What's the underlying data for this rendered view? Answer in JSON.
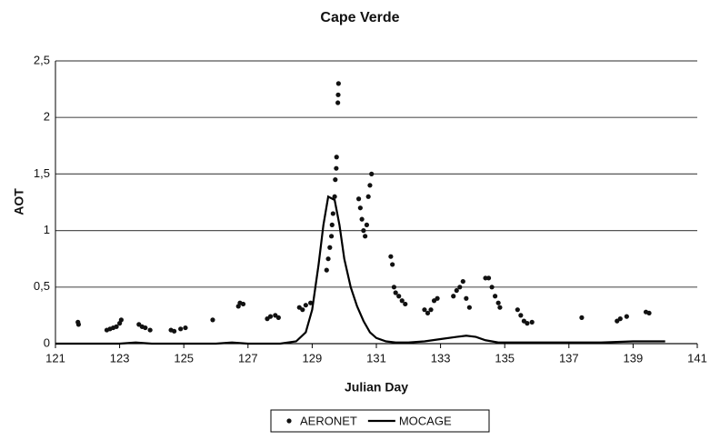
{
  "chart_data": {
    "type": "scatter",
    "title": "Cape Verde",
    "x_label": "Julian Day",
    "y_label": "AOT",
    "xlim": [
      121,
      141
    ],
    "xticks": [
      121,
      123,
      125,
      127,
      129,
      131,
      133,
      135,
      137,
      139,
      141
    ],
    "ylim": [
      0,
      2.5
    ],
    "yticks": [
      0,
      {
        "value": 0.5,
        "label": "0,5"
      },
      1,
      {
        "value": 1.5,
        "label": "1,5"
      },
      2,
      {
        "value": 2.5,
        "label": "2,5"
      }
    ],
    "grid": true,
    "legend": "bottom",
    "series": [
      {
        "name": "AERONET",
        "style": "points",
        "color": "#111111",
        "x": [
          121.7,
          121.72,
          122.6,
          122.7,
          122.8,
          122.9,
          123.0,
          123.05,
          123.6,
          123.7,
          123.8,
          123.95,
          124.6,
          124.7,
          124.9,
          125.05,
          125.9,
          126.7,
          126.75,
          126.85,
          127.6,
          127.7,
          127.85,
          127.95,
          128.6,
          128.7,
          128.8,
          128.95,
          129.45,
          129.5,
          129.55,
          129.6,
          129.62,
          129.65,
          129.7,
          129.72,
          129.75,
          129.76,
          129.8,
          129.81,
          129.82,
          130.45,
          130.5,
          130.55,
          130.6,
          130.65,
          130.7,
          130.75,
          130.8,
          130.85,
          131.45,
          131.5,
          131.55,
          131.6,
          131.7,
          131.8,
          131.9,
          132.5,
          132.6,
          132.7,
          132.8,
          132.9,
          133.4,
          133.5,
          133.6,
          133.7,
          133.8,
          133.9,
          134.4,
          134.5,
          134.6,
          134.7,
          134.8,
          134.85,
          135.4,
          135.5,
          135.6,
          135.7,
          135.85,
          137.4,
          138.5,
          138.6,
          138.8,
          139.4,
          139.5
        ],
        "values": [
          0.19,
          0.17,
          0.12,
          0.13,
          0.14,
          0.15,
          0.18,
          0.21,
          0.17,
          0.15,
          0.14,
          0.12,
          0.12,
          0.11,
          0.13,
          0.14,
          0.21,
          0.33,
          0.36,
          0.35,
          0.22,
          0.24,
          0.25,
          0.23,
          0.32,
          0.3,
          0.34,
          0.36,
          0.65,
          0.75,
          0.85,
          0.95,
          1.05,
          1.15,
          1.3,
          1.45,
          1.55,
          1.65,
          2.13,
          2.2,
          2.3,
          1.28,
          1.2,
          1.1,
          1.0,
          0.95,
          1.05,
          1.3,
          1.4,
          1.5,
          0.77,
          0.7,
          0.5,
          0.45,
          0.42,
          0.38,
          0.35,
          0.3,
          0.27,
          0.3,
          0.38,
          0.4,
          0.42,
          0.47,
          0.5,
          0.55,
          0.4,
          0.32,
          0.58,
          0.58,
          0.5,
          0.42,
          0.36,
          0.32,
          0.3,
          0.25,
          0.2,
          0.18,
          0.19,
          0.23,
          0.2,
          0.22,
          0.24,
          0.28,
          0.27
        ]
      },
      {
        "name": "MOCAGE",
        "style": "line",
        "color": "#000000",
        "x": [
          121,
          122,
          123,
          123.5,
          124,
          125,
          126,
          126.5,
          127,
          128,
          128.5,
          128.8,
          129,
          129.2,
          129.35,
          129.5,
          129.7,
          129.85,
          130,
          130.2,
          130.4,
          130.6,
          130.8,
          131,
          131.3,
          131.6,
          132,
          132.5,
          133,
          133.5,
          133.8,
          134.1,
          134.4,
          134.8,
          135.5,
          136,
          137,
          138,
          139,
          140
        ],
        "values": [
          0,
          0,
          0,
          0.01,
          0,
          0,
          0,
          0.01,
          0,
          0,
          0.02,
          0.1,
          0.3,
          0.7,
          1.05,
          1.3,
          1.27,
          1.05,
          0.75,
          0.5,
          0.33,
          0.2,
          0.1,
          0.05,
          0.02,
          0.01,
          0.01,
          0.02,
          0.04,
          0.06,
          0.07,
          0.06,
          0.03,
          0.01,
          0.01,
          0.01,
          0.01,
          0.01,
          0.02,
          0.02
        ]
      }
    ]
  }
}
